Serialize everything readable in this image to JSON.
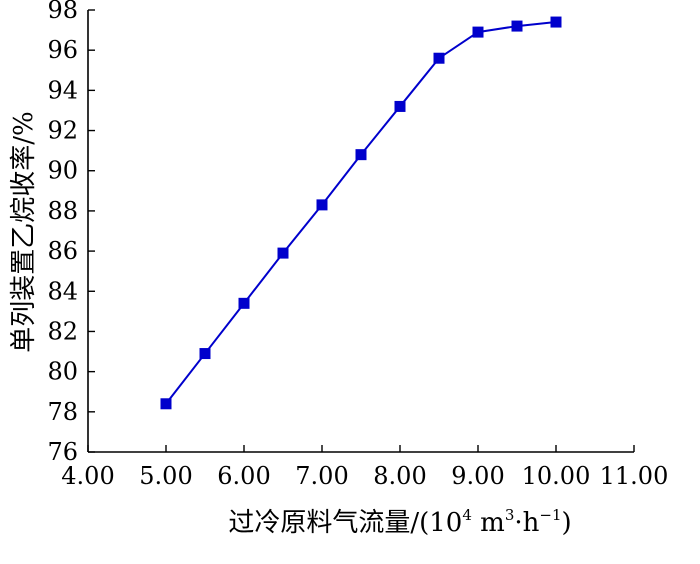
{
  "chart_data": {
    "type": "line",
    "title": "",
    "xlabel": {
      "main": "过冷原料气流量/(10",
      "sup1": "4",
      "mid": " m",
      "sup2": "3",
      "dot": "·h",
      "sup3": "−1",
      "close": ")"
    },
    "ylabel": "单列装置乙烷收率/%",
    "xlim": [
      4.0,
      11.0
    ],
    "ylim": [
      76,
      98
    ],
    "xticks": [
      "4.00",
      "5.00",
      "6.00",
      "7.00",
      "8.00",
      "9.00",
      "10.00",
      "11.00"
    ],
    "yticks": [
      "76",
      "78",
      "80",
      "82",
      "84",
      "86",
      "88",
      "90",
      "92",
      "94",
      "96",
      "98"
    ],
    "grid": false,
    "color": "#0000cc",
    "marker": "square",
    "series": [
      {
        "x": [
          5.0,
          5.5,
          6.0,
          6.5,
          7.0,
          7.5,
          8.0,
          8.5,
          9.0,
          9.5,
          10.0
        ],
        "values": [
          78.4,
          80.9,
          83.4,
          85.9,
          88.3,
          90.8,
          93.2,
          95.6,
          96.9,
          97.2,
          97.4
        ]
      }
    ]
  }
}
